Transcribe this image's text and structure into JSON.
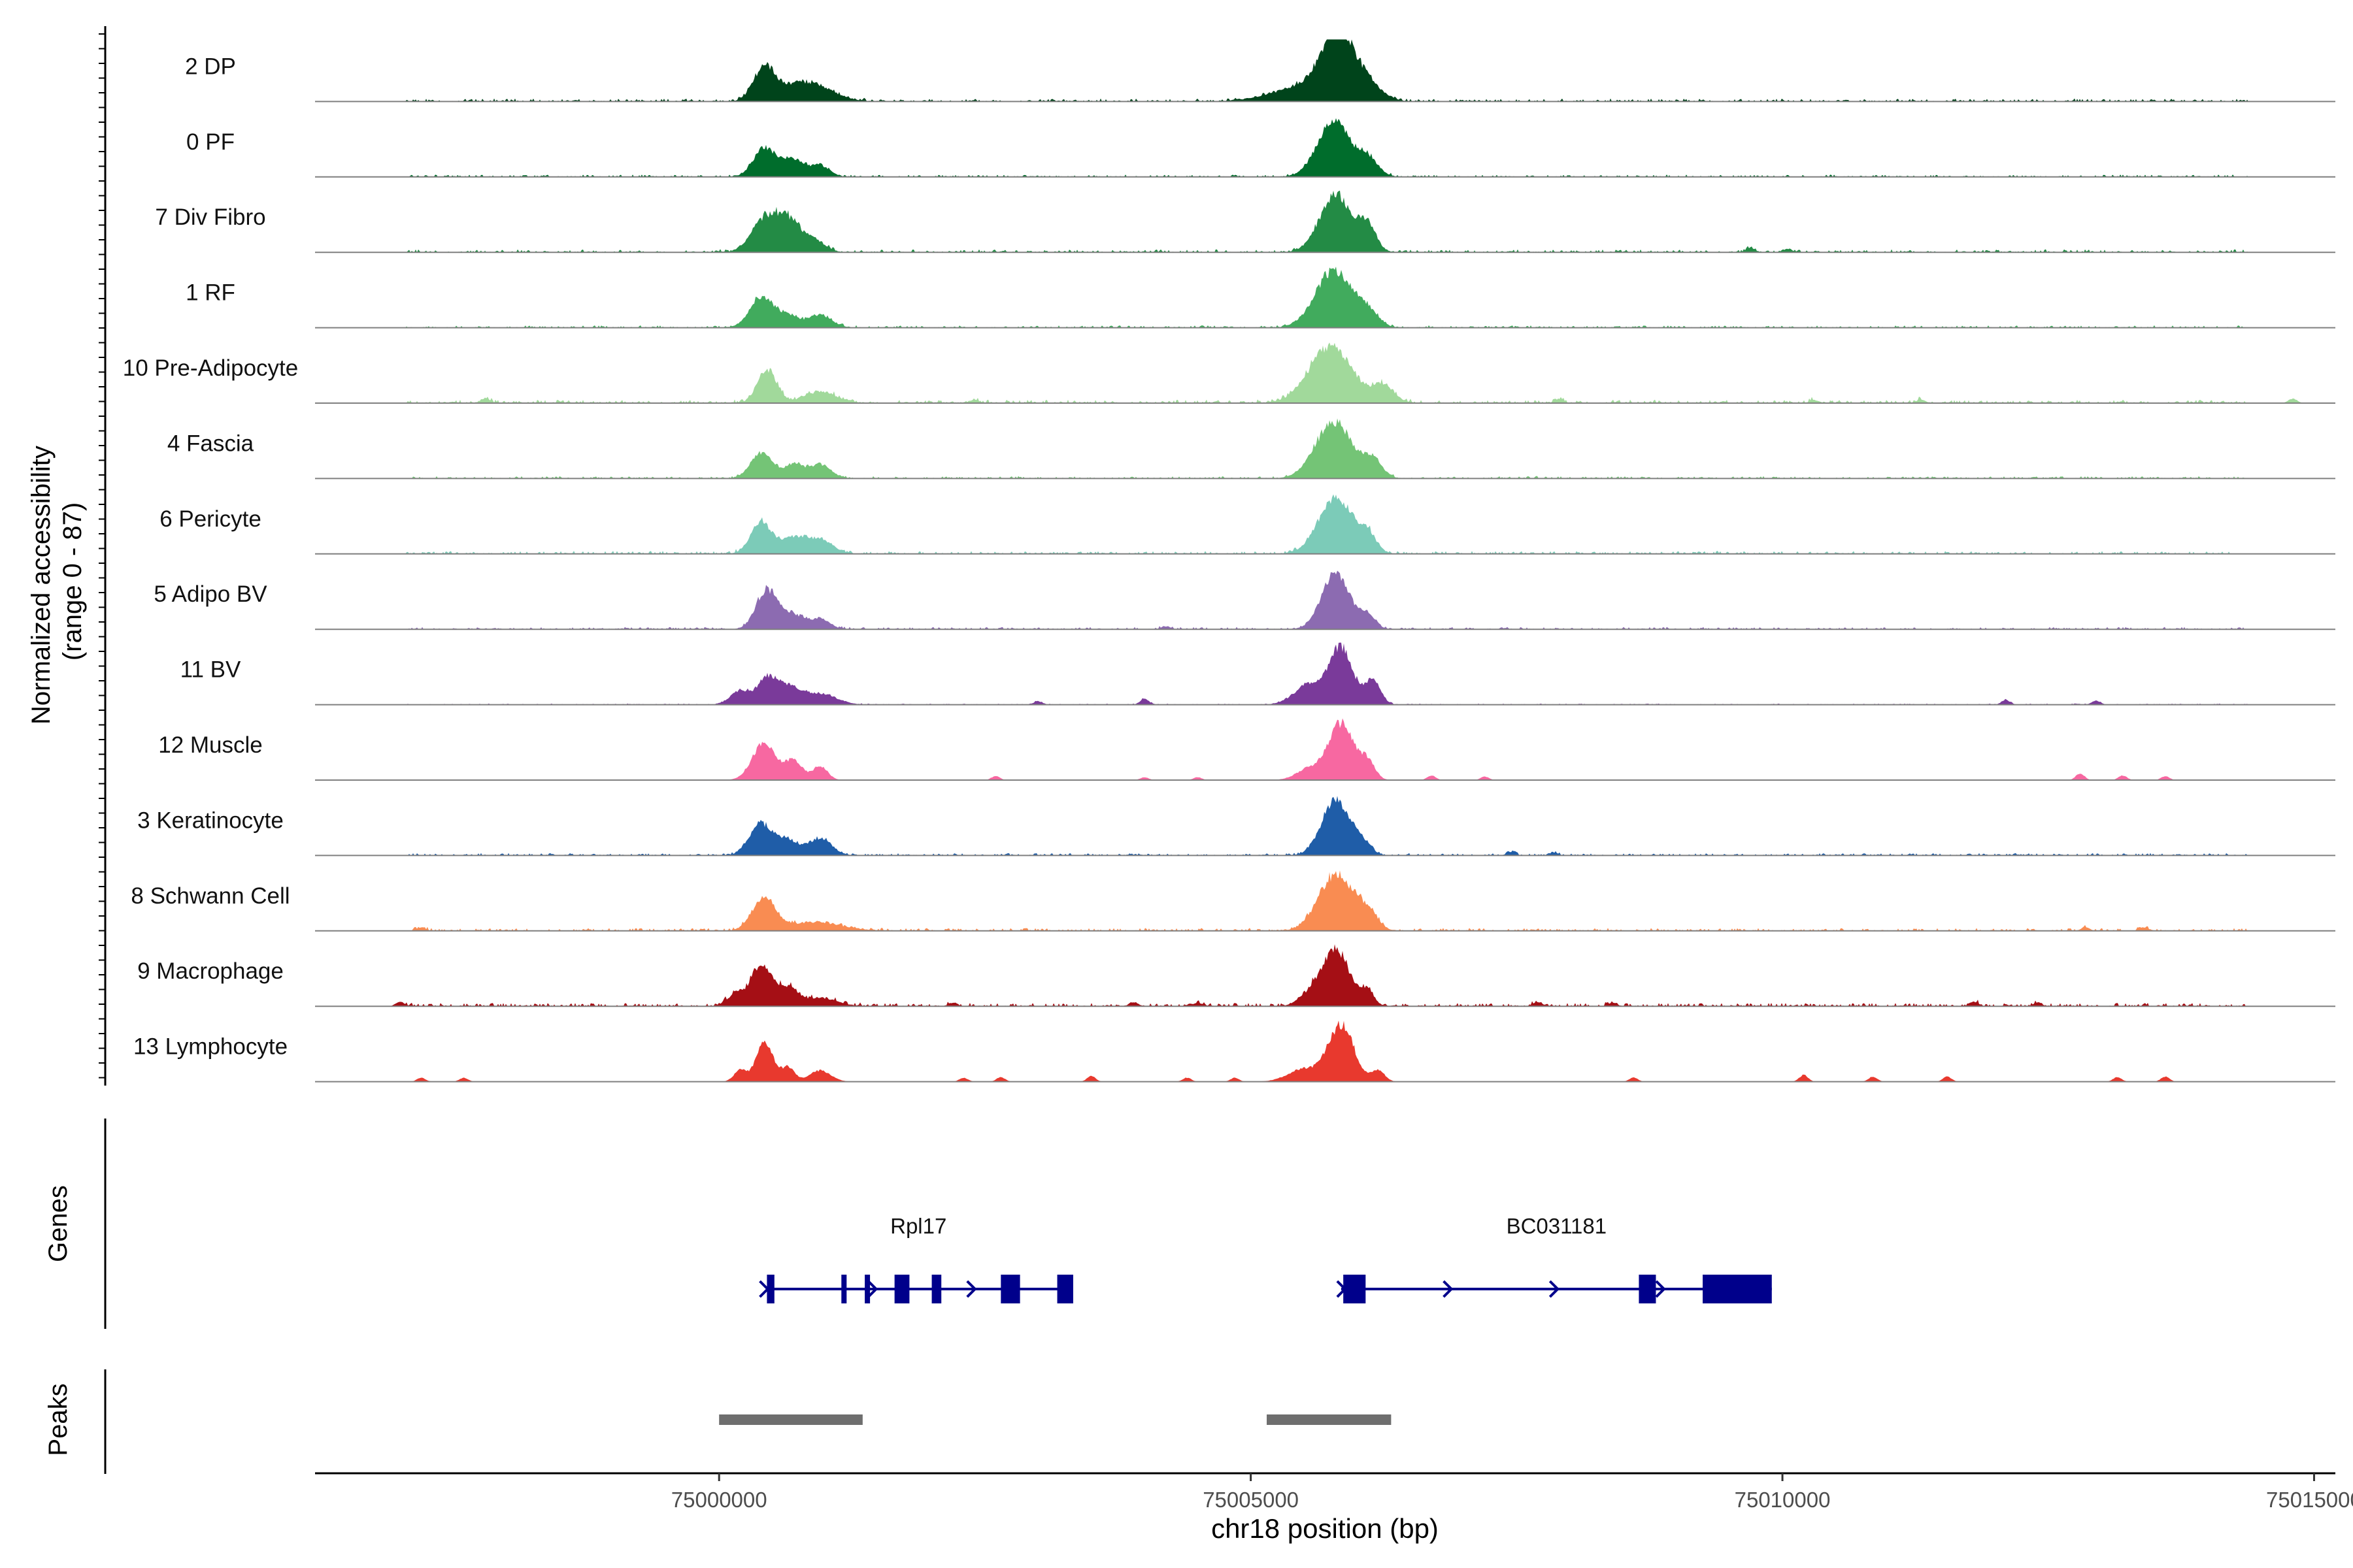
{
  "chart_data": {
    "type": "area",
    "title": "",
    "ylabel_line1": "Normalized accessibility",
    "ylabel_line2": "(range 0 - 87)",
    "y_range": [
      0,
      87
    ],
    "xlabel": "chr18 position (bp)",
    "xlim": [
      74996200,
      75015200
    ],
    "xticks": [
      75000000,
      75005000,
      75010000,
      75015000
    ],
    "xtick_labels": [
      "75000000",
      "75005000",
      "75010000",
      "75015000"
    ],
    "tracks": [
      {
        "name": "2 DP",
        "color": "#00441B",
        "bg": 0.05,
        "peaks": [
          [
            75000420,
            100,
            0.55
          ],
          [
            75000700,
            180,
            0.25
          ],
          [
            75000950,
            180,
            0.18
          ],
          [
            75005800,
            150,
            1.0
          ],
          [
            75005500,
            300,
            0.25
          ],
          [
            75006050,
            150,
            0.35
          ]
        ],
        "blips": []
      },
      {
        "name": "0 PF",
        "color": "#006D2C",
        "bg": 0.04,
        "peaks": [
          [
            75000420,
            100,
            0.5
          ],
          [
            75000680,
            110,
            0.32
          ],
          [
            75000950,
            90,
            0.2
          ],
          [
            75005780,
            150,
            1.0
          ],
          [
            75006100,
            100,
            0.3
          ]
        ],
        "blips": []
      },
      {
        "name": "7 Div Fibro",
        "color": "#238B45",
        "bg": 0.05,
        "peaks": [
          [
            75000420,
            120,
            0.55
          ],
          [
            75000650,
            120,
            0.55
          ],
          [
            75000900,
            100,
            0.18
          ],
          [
            75005800,
            150,
            1.0
          ],
          [
            75006100,
            80,
            0.45
          ]
        ],
        "blips": [
          [
            75009700,
            0.08
          ],
          [
            75010050,
            0.06
          ]
        ]
      },
      {
        "name": "1 RF",
        "color": "#41AB5D",
        "bg": 0.04,
        "peaks": [
          [
            75000400,
            110,
            0.55
          ],
          [
            75000650,
            100,
            0.2
          ],
          [
            75000950,
            110,
            0.22
          ],
          [
            75005780,
            170,
            1.0
          ],
          [
            75006100,
            100,
            0.25
          ]
        ],
        "blips": []
      },
      {
        "name": "10 Pre-Adipocyte",
        "color": "#A1D99B",
        "bg": 0.06,
        "peaks": [
          [
            75000450,
            90,
            0.6
          ],
          [
            75000950,
            150,
            0.2
          ],
          [
            75005750,
            200,
            1.0
          ],
          [
            75006250,
            100,
            0.3
          ]
        ],
        "blips": [
          [
            74997800,
            0.08
          ],
          [
            75002400,
            0.06
          ],
          [
            75007900,
            0.07
          ],
          [
            75010300,
            0.05
          ],
          [
            75011300,
            0.06
          ],
          [
            75014800,
            0.08
          ]
        ]
      },
      {
        "name": "4 Fascia",
        "color": "#74C476",
        "bg": 0.04,
        "peaks": [
          [
            75000400,
            100,
            0.45
          ],
          [
            75000700,
            90,
            0.25
          ],
          [
            75000950,
            100,
            0.25
          ],
          [
            75005780,
            170,
            1.0
          ],
          [
            75006150,
            90,
            0.3
          ]
        ],
        "blips": []
      },
      {
        "name": "6 Pericyte",
        "color": "#7CCBB8",
        "bg": 0.05,
        "peaks": [
          [
            75000400,
            100,
            0.55
          ],
          [
            75000700,
            110,
            0.28
          ],
          [
            75000950,
            120,
            0.25
          ],
          [
            75005800,
            160,
            1.0
          ],
          [
            75006100,
            80,
            0.3
          ]
        ],
        "blips": []
      },
      {
        "name": "5 Adipo BV",
        "color": "#8C6BB1",
        "bg": 0.04,
        "peaks": [
          [
            75000450,
            100,
            0.7
          ],
          [
            75000700,
            100,
            0.25
          ],
          [
            75000950,
            90,
            0.18
          ],
          [
            75005800,
            130,
            1.0
          ],
          [
            75006100,
            70,
            0.25
          ]
        ],
        "blips": [
          [
            75004200,
            0.05
          ]
        ]
      },
      {
        "name": "11 BV",
        "color": "#7A3A9A",
        "bg": 0.02,
        "peaks": [
          [
            75000450,
            90,
            0.45
          ],
          [
            75000200,
            90,
            0.25
          ],
          [
            75000650,
            110,
            0.3
          ],
          [
            75000950,
            150,
            0.2
          ],
          [
            75005550,
            140,
            0.35
          ],
          [
            75005850,
            110,
            1.0
          ],
          [
            75006150,
            70,
            0.45
          ]
        ],
        "blips": [
          [
            75004000,
            0.1
          ],
          [
            75012100,
            0.08
          ],
          [
            75012950,
            0.07
          ],
          [
            75003000,
            0.06
          ]
        ]
      },
      {
        "name": "12 Muscle",
        "color": "#F768A1",
        "bg": 0.0,
        "peaks": [
          [
            75000420,
            110,
            0.65
          ],
          [
            75000700,
            80,
            0.35
          ],
          [
            75000950,
            70,
            0.25
          ],
          [
            75005850,
            120,
            1.0
          ],
          [
            75005550,
            120,
            0.2
          ],
          [
            75006100,
            70,
            0.3
          ]
        ],
        "blips": [
          [
            75002600,
            0.07
          ],
          [
            75004000,
            0.05
          ],
          [
            75004500,
            0.05
          ],
          [
            75006700,
            0.08
          ],
          [
            75007200,
            0.06
          ],
          [
            75012800,
            0.12
          ],
          [
            75013200,
            0.08
          ],
          [
            75013600,
            0.07
          ]
        ]
      },
      {
        "name": "3 Keratinocyte",
        "color": "#1F5DA8",
        "bg": 0.04,
        "peaks": [
          [
            75000400,
            110,
            0.55
          ],
          [
            75000650,
            100,
            0.25
          ],
          [
            75000950,
            110,
            0.3
          ],
          [
            75005800,
            130,
            1.0
          ],
          [
            75006050,
            80,
            0.2
          ]
        ],
        "blips": [
          [
            75007450,
            0.06
          ],
          [
            75007850,
            0.05
          ]
        ]
      },
      {
        "name": "8 Schwann Cell",
        "color": "#F98C52",
        "bg": 0.05,
        "peaks": [
          [
            75000420,
            110,
            0.55
          ],
          [
            75000900,
            250,
            0.15
          ],
          [
            75005800,
            160,
            1.0
          ],
          [
            75006100,
            90,
            0.3
          ]
        ],
        "blips": [
          [
            74997200,
            0.06
          ],
          [
            75012850,
            0.06
          ],
          [
            75013400,
            0.06
          ]
        ]
      },
      {
        "name": "9 Macrophage",
        "color": "#A50F15",
        "bg": 0.06,
        "peaks": [
          [
            75000400,
            100,
            0.75
          ],
          [
            75000150,
            80,
            0.2
          ],
          [
            75000650,
            90,
            0.3
          ],
          [
            75000950,
            150,
            0.15
          ],
          [
            75005800,
            130,
            1.0
          ],
          [
            75005550,
            100,
            0.18
          ],
          [
            75006100,
            60,
            0.25
          ]
        ],
        "blips": [
          [
            74997000,
            0.08
          ],
          [
            75002200,
            0.06
          ],
          [
            75003900,
            0.07
          ],
          [
            75004500,
            0.06
          ],
          [
            75007700,
            0.07
          ],
          [
            75008400,
            0.06
          ],
          [
            75011800,
            0.08
          ],
          [
            75012400,
            0.06
          ]
        ]
      },
      {
        "name": "13 Lymphocyte",
        "color": "#E8392E",
        "bg": 0.0,
        "peaks": [
          [
            75000430,
            80,
            0.7
          ],
          [
            75000200,
            60,
            0.2
          ],
          [
            75000650,
            60,
            0.25
          ],
          [
            75000950,
            100,
            0.2
          ],
          [
            75005850,
            120,
            1.0
          ],
          [
            75005500,
            150,
            0.22
          ],
          [
            75006200,
            60,
            0.2
          ]
        ],
        "blips": [
          [
            74997200,
            0.07
          ],
          [
            74997600,
            0.07
          ],
          [
            75002300,
            0.07
          ],
          [
            75002650,
            0.08
          ],
          [
            75003500,
            0.1
          ],
          [
            75004400,
            0.07
          ],
          [
            75004850,
            0.07
          ],
          [
            75008600,
            0.07
          ],
          [
            75010200,
            0.12
          ],
          [
            75010850,
            0.09
          ],
          [
            75011550,
            0.09
          ],
          [
            75013150,
            0.08
          ],
          [
            75013600,
            0.09
          ]
        ]
      }
    ],
    "genes": {
      "label": "Genes",
      "color": "#00008B",
      "items": [
        {
          "name": "Rpl17",
          "start": 75000450,
          "end": 75003300,
          "strand": "+",
          "exons": [
            [
              75000450,
              75000520
            ],
            [
              75001150,
              75001190
            ],
            [
              75001370,
              75001410
            ],
            [
              75001650,
              75001790
            ],
            [
              75002000,
              75002090
            ],
            [
              75002650,
              75002830
            ],
            [
              75003180,
              75003330
            ]
          ],
          "arrows": [
            75000420,
            75001440,
            75002370
          ]
        },
        {
          "name": "BC031181",
          "start": 75005850,
          "end": 75009900,
          "strand": "+",
          "exons": [
            [
              75005870,
              75006080
            ],
            [
              75008650,
              75008810
            ],
            [
              75009250,
              75009900
            ]
          ],
          "arrows": [
            75005850,
            75006850,
            75007850,
            75008850
          ]
        }
      ]
    },
    "peaks_track": {
      "label": "Peaks",
      "color": "#6E6E6E",
      "regions": [
        [
          75000000,
          75001350
        ],
        [
          75005150,
          75006320
        ]
      ]
    }
  }
}
